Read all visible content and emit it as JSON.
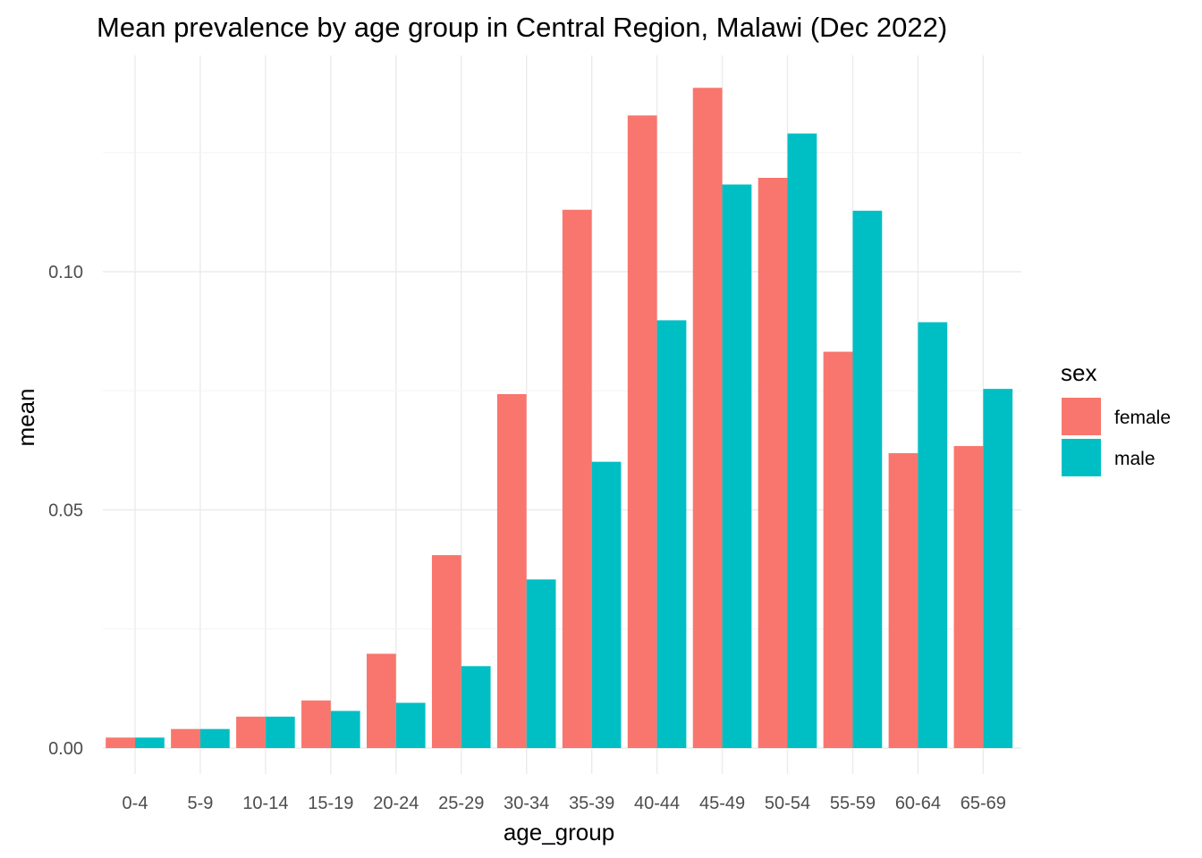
{
  "chart_data": {
    "type": "bar",
    "title": "Mean prevalence by age group in Central Region, Malawi (Dec 2022)",
    "xlabel": "age_group",
    "ylabel": "mean",
    "categories": [
      "0-4",
      "5-9",
      "10-14",
      "15-19",
      "20-24",
      "25-29",
      "30-34",
      "35-39",
      "40-44",
      "45-49",
      "50-54",
      "55-59",
      "60-64",
      "65-69"
    ],
    "series": [
      {
        "name": "female",
        "color": "#F8766D",
        "values": [
          0.0022,
          0.004,
          0.0066,
          0.01,
          0.0198,
          0.0405,
          0.0743,
          0.113,
          0.1328,
          0.1386,
          0.1197,
          0.0832,
          0.0619,
          0.0634
        ]
      },
      {
        "name": "male",
        "color": "#00BFC4",
        "values": [
          0.0022,
          0.004,
          0.0066,
          0.0078,
          0.0095,
          0.0172,
          0.0354,
          0.0601,
          0.0898,
          0.1183,
          0.129,
          0.1128,
          0.0894,
          0.0754
        ]
      }
    ],
    "ylim": [
      0,
      0.14
    ],
    "yticks": [
      "0.00",
      "0.05",
      "0.10"
    ],
    "ytick_values": [
      0,
      0.05,
      0.1
    ],
    "grid": true,
    "legend": {
      "title": "sex",
      "position": "right"
    }
  }
}
